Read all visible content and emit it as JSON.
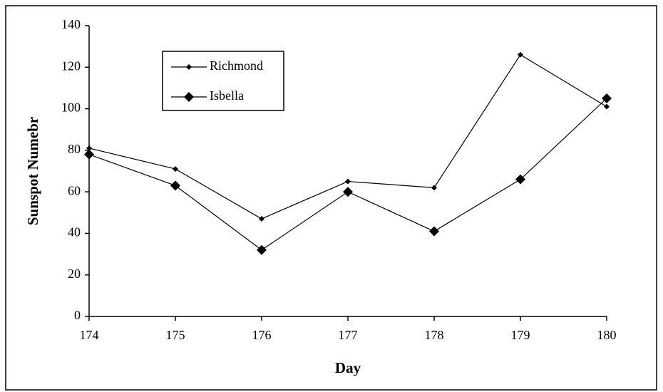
{
  "chart_data": {
    "type": "line",
    "xlabel": "Day",
    "ylabel": "Sunspot Numebr",
    "x": [
      174,
      175,
      176,
      177,
      178,
      179,
      180
    ],
    "series": [
      {
        "name": "Richmond",
        "color": "#000000",
        "marker": "small-diamond",
        "values": [
          81,
          71,
          47,
          65,
          62,
          126,
          101
        ]
      },
      {
        "name": "Isbella",
        "color": "#000000",
        "marker": "large-diamond",
        "values": [
          78,
          63,
          32,
          60,
          41,
          66,
          105
        ]
      }
    ],
    "xlim": [
      174,
      180
    ],
    "xticks": [
      174,
      175,
      176,
      177,
      178,
      179,
      180
    ],
    "ylim": [
      0,
      140
    ],
    "yticks": [
      0,
      20,
      40,
      60,
      80,
      100,
      120,
      140
    ],
    "legend": "upper left"
  }
}
